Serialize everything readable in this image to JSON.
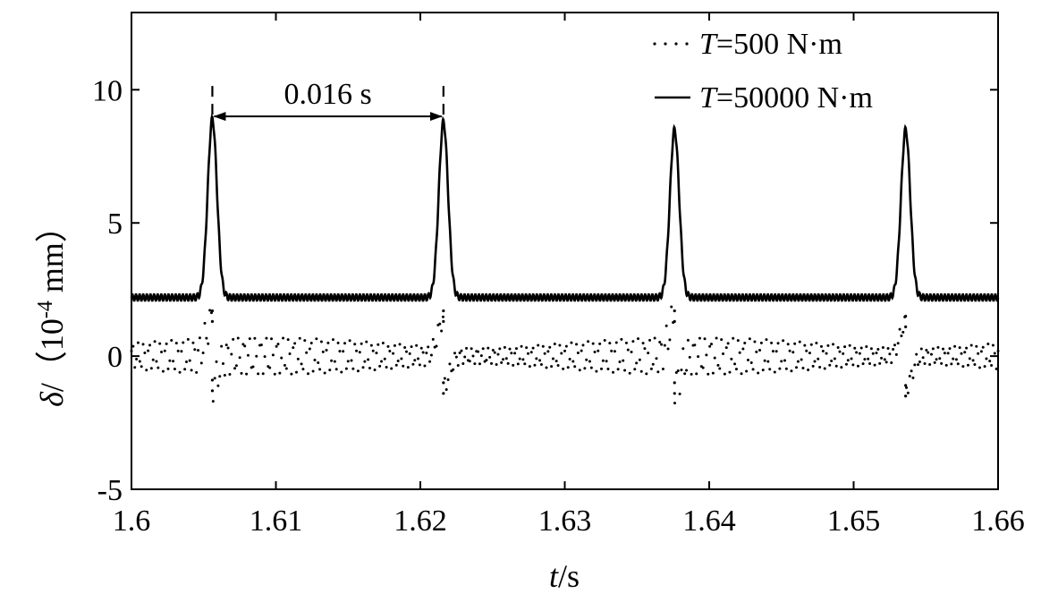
{
  "chart_data": {
    "type": "line",
    "title": "",
    "xlabel": {
      "italic": "t",
      "rest": "/s"
    },
    "ylabel": {
      "italic": "δ",
      "rest": "/（10",
      "sup": "-4",
      "tail": " mm）"
    },
    "xlim": [
      1.6,
      1.66
    ],
    "ylim": [
      -5,
      12.9
    ],
    "x_ticks": [
      1.6,
      1.61,
      1.62,
      1.63,
      1.64,
      1.65,
      1.66
    ],
    "x_tick_labels": [
      "1.6",
      "1.61",
      "1.62",
      "1.63",
      "1.64",
      "1.65",
      "1.66"
    ],
    "y_ticks": [
      -5,
      0,
      5,
      10
    ],
    "y_tick_labels": [
      "-5",
      "0",
      "5",
      "10"
    ],
    "grid": false,
    "legend_position": "top-right",
    "series": [
      {
        "name": "T=500 N·m",
        "legend_italic": "T",
        "legend_rest": "=500 N·m",
        "style": "dotted",
        "color": "#000000",
        "baseline": 0.0,
        "ripple_amplitude": 0.5,
        "spikes": [
          {
            "x": 1.6056,
            "max": 1.7,
            "min": -1.3
          },
          {
            "x": 1.6216,
            "max": 1.7,
            "min": -1.4
          },
          {
            "x": 1.6376,
            "max": 1.7,
            "min": -1.4
          },
          {
            "x": 1.6536,
            "max": 1.5,
            "min": -1.5
          }
        ]
      },
      {
        "name": "T=50000 N·m",
        "legend_italic": "T",
        "legend_rest": "=50000 N·m",
        "style": "solid",
        "color": "#000000",
        "baseline": 2.2,
        "ripple_amplitude": 0.12,
        "peaks": [
          {
            "x": 1.6056,
            "y": 8.9
          },
          {
            "x": 1.6216,
            "y": 8.8
          },
          {
            "x": 1.6376,
            "y": 8.5
          },
          {
            "x": 1.6536,
            "y": 8.5
          }
        ]
      }
    ],
    "annotations": [
      {
        "text": "0.016 s",
        "type": "double-arrow",
        "x_start": 1.6056,
        "x_end": 1.6216,
        "y": 9.0
      }
    ]
  }
}
